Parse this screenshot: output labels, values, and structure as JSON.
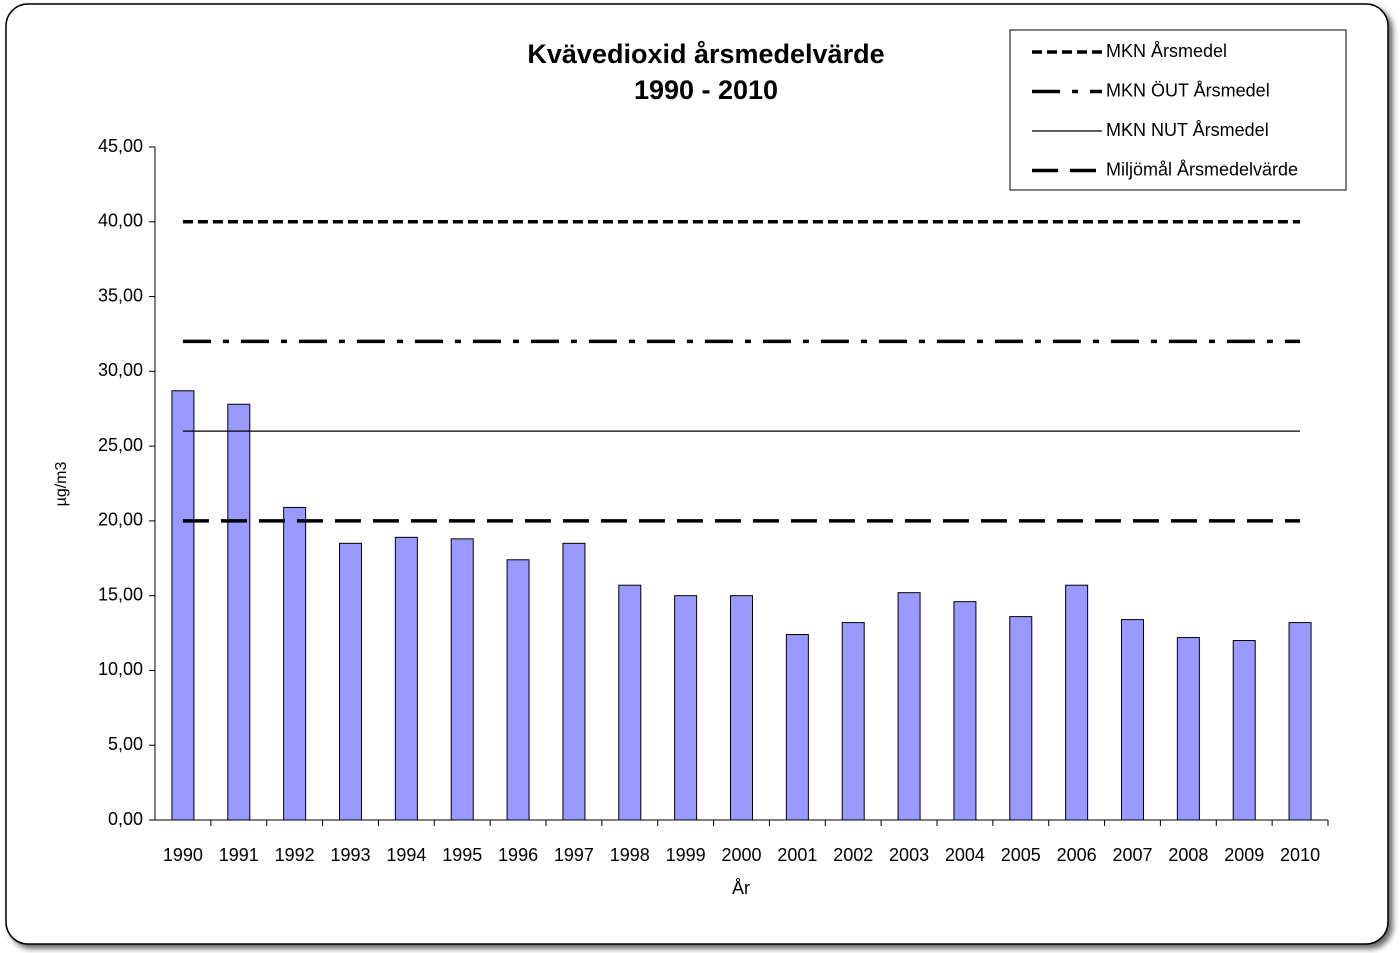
{
  "chart_data": {
    "type": "bar",
    "title": "Kvävedioxid årsmedelvärde",
    "subtitle": "1990 - 2010",
    "xlabel": "År",
    "ylabel": "µg/m3",
    "categories": [
      "1990",
      "1991",
      "1992",
      "1993",
      "1994",
      "1995",
      "1996",
      "1997",
      "1998",
      "1999",
      "2000",
      "2001",
      "2002",
      "2003",
      "2004",
      "2005",
      "2006",
      "2007",
      "2008",
      "2009",
      "2010"
    ],
    "ylim": [
      0,
      45
    ],
    "yticks": [
      {
        "value": 0,
        "label": "0,00"
      },
      {
        "value": 5,
        "label": "5,00"
      },
      {
        "value": 10,
        "label": "10,00"
      },
      {
        "value": 15,
        "label": "15,00"
      },
      {
        "value": 20,
        "label": "20,00"
      },
      {
        "value": 25,
        "label": "25,00"
      },
      {
        "value": 30,
        "label": "30,00"
      },
      {
        "value": 35,
        "label": "35,00"
      },
      {
        "value": 40,
        "label": "40,00"
      },
      {
        "value": 45,
        "label": "45,00"
      }
    ],
    "legend": "top-right",
    "series": [
      {
        "type": "bar",
        "color": "#9999ff",
        "values": [
          28.7,
          27.8,
          20.9,
          18.5,
          18.9,
          18.8,
          17.4,
          18.5,
          15.7,
          15.0,
          15.0,
          12.4,
          13.2,
          15.2,
          14.6,
          13.6,
          15.7,
          13.4,
          12.2,
          12.0,
          13.2
        ]
      },
      {
        "name": "MKN Årsmedel",
        "type": "line",
        "color": "#000000",
        "dash": "short-dash",
        "values": [
          40,
          40,
          40,
          40,
          40,
          40,
          40,
          40,
          40,
          40,
          40,
          40,
          40,
          40,
          40,
          40,
          40,
          40,
          40,
          40,
          40
        ]
      },
      {
        "name": "MKN ÖUT Årsmedel",
        "type": "line",
        "color": "#000000",
        "dash": "dash-dot",
        "values": [
          32,
          32,
          32,
          32,
          32,
          32,
          32,
          32,
          32,
          32,
          32,
          32,
          32,
          32,
          32,
          32,
          32,
          32,
          32,
          32,
          32
        ]
      },
      {
        "name": "MKN NUT Årsmedel",
        "type": "line",
        "color": "#000000",
        "dash": "solid",
        "values": [
          26,
          26,
          26,
          26,
          26,
          26,
          26,
          26,
          26,
          26,
          26,
          26,
          26,
          26,
          26,
          26,
          26,
          26,
          26,
          26,
          26
        ]
      },
      {
        "name": "Miljömål Årsmedelvärde",
        "type": "line",
        "color": "#000000",
        "dash": "long-dash",
        "values": [
          20,
          20,
          20,
          20,
          20,
          20,
          20,
          20,
          20,
          20,
          20,
          20,
          20,
          20,
          20,
          20,
          20,
          20,
          20,
          20,
          20
        ]
      }
    ]
  }
}
